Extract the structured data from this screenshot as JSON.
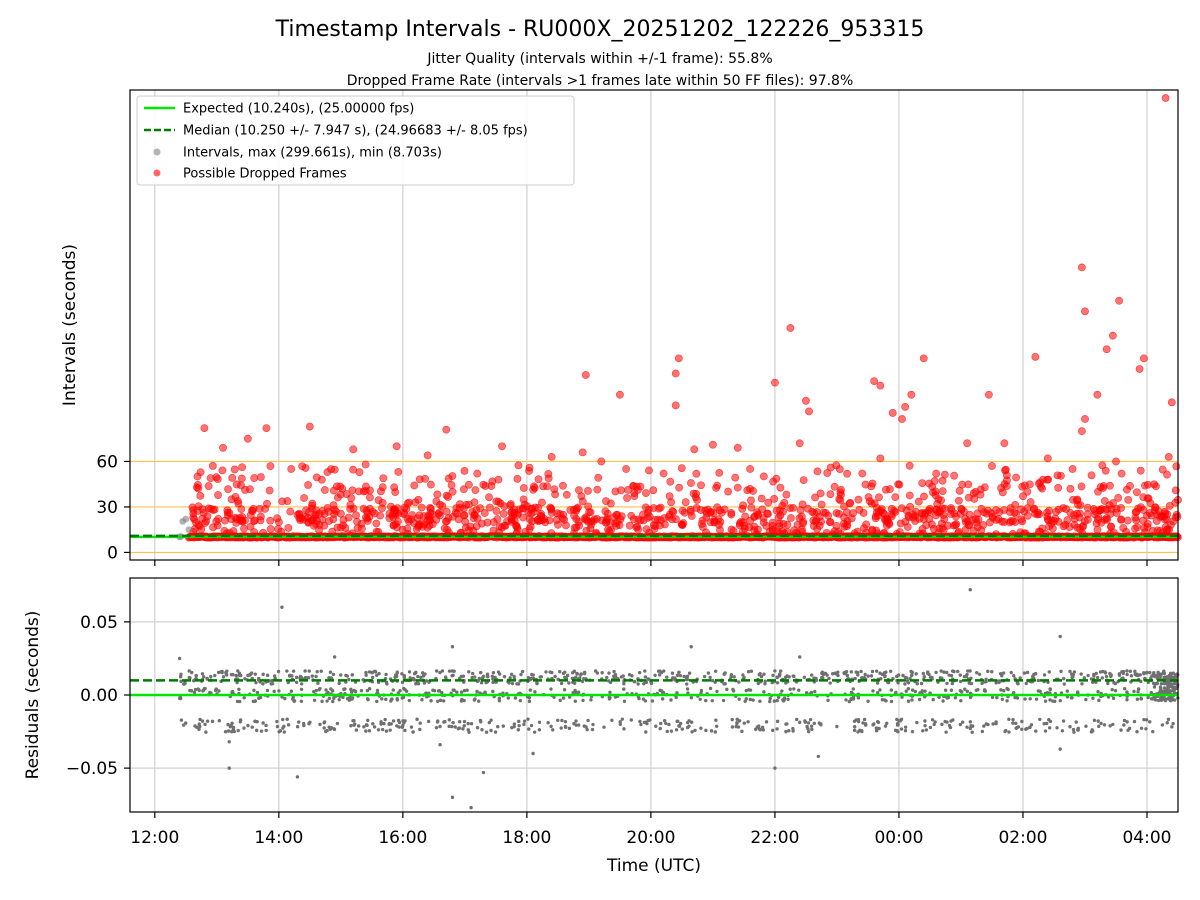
{
  "chart_data": [
    {
      "type": "scatter",
      "title": "Timestamp Intervals - RU000X_20251202_122226_953315",
      "subtitle_1": "Jitter Quality (intervals within +/-1 frame): 55.8%",
      "subtitle_2": "Dropped Frame Rate (intervals >1 frames late within 50 FF files): 97.8%",
      "ylabel": "Intervals (seconds)",
      "xlabel": "",
      "xlim_hours": [
        11.6,
        28.5
      ],
      "ylim": [
        -5,
        305
      ],
      "yticks": [
        0,
        30,
        60
      ],
      "ytick_labels": [
        "0",
        "30",
        "60"
      ],
      "xticks_hours": [
        12,
        14,
        16,
        18,
        20,
        22,
        24,
        26,
        28
      ],
      "threshold_lines": [
        0,
        30,
        60
      ],
      "grid": "x",
      "legend_position": "top-left",
      "legend": [
        {
          "label": "Expected (10.240s), (25.00000 fps)",
          "style": "solid-line",
          "color": "#00e600"
        },
        {
          "label": "Median (10.250 +/- 7.947 s), (24.96683 +/- 8.05 fps)",
          "style": "dashed-line",
          "color": "#007a00"
        },
        {
          "label": "Intervals, max (299.661s), min (8.703s)",
          "style": "marker",
          "color": "#808080"
        },
        {
          "label": "Possible Dropped Frames",
          "style": "marker",
          "color": "#ff0000"
        }
      ],
      "expected_value": 10.24,
      "median_value": 10.25,
      "series": [
        {
          "name": "Possible Dropped Frames (sampled outliers)",
          "color": "#ff0000",
          "points": [
            [
              28.3,
              299.7
            ],
            [
              26.95,
              188
            ],
            [
              27.0,
              159
            ],
            [
              27.55,
              166
            ],
            [
              27.45,
              143
            ],
            [
              24.4,
              128
            ],
            [
              22.25,
              148
            ],
            [
              23.6,
              113
            ],
            [
              20.4,
              118
            ],
            [
              20.45,
              128
            ],
            [
              20.4,
              97
            ],
            [
              19.5,
              104
            ],
            [
              22.0,
              112
            ],
            [
              22.5,
              100
            ],
            [
              22.55,
              93
            ],
            [
              23.9,
              92
            ],
            [
              24.1,
              96
            ],
            [
              24.2,
              104
            ],
            [
              24.05,
              88
            ],
            [
              25.45,
              104
            ],
            [
              27.35,
              134
            ],
            [
              27.2,
              104
            ],
            [
              28.4,
              99
            ],
            [
              27.0,
              88
            ],
            [
              26.2,
              129
            ],
            [
              26.95,
              80
            ],
            [
              27.95,
              128
            ],
            [
              27.88,
              121
            ],
            [
              23.7,
              110
            ],
            [
              13.1,
              69
            ],
            [
              13.5,
              75
            ],
            [
              13.8,
              82
            ],
            [
              12.8,
              82
            ],
            [
              14.5,
              83
            ],
            [
              16.7,
              81
            ],
            [
              18.95,
              117
            ],
            [
              15.2,
              68
            ],
            [
              15.9,
              70
            ],
            [
              16.4,
              64
            ],
            [
              17.6,
              70
            ],
            [
              18.4,
              63
            ],
            [
              18.9,
              66
            ],
            [
              19.2,
              60
            ],
            [
              20.7,
              68
            ],
            [
              21.0,
              71
            ],
            [
              21.4,
              69
            ],
            [
              22.4,
              72
            ],
            [
              23.7,
              62
            ],
            [
              25.1,
              72
            ],
            [
              25.7,
              72
            ],
            [
              26.4,
              62
            ],
            [
              27.5,
              60
            ],
            [
              28.35,
              63
            ],
            [
              12.9,
              49
            ],
            [
              14.2,
              55
            ],
            [
              15.4,
              58
            ],
            [
              17.2,
              52
            ],
            [
              19.6,
              55
            ],
            [
              21.6,
              55
            ],
            [
              22.9,
              56
            ],
            [
              24.6,
              52
            ],
            [
              25.5,
              57
            ],
            [
              26.8,
              55
            ]
          ],
          "band_summary": {
            "dense_band_value": 10.24,
            "common_range": [
              15,
              50
            ]
          }
        },
        {
          "name": "Intervals (gray, near expected)",
          "color": "#808080",
          "points": [
            [
              12.4,
              10.2
            ],
            [
              12.45,
              20.5
            ],
            [
              12.5,
              22
            ],
            [
              12.55,
              15
            ],
            [
              12.42,
              10.5
            ]
          ]
        }
      ]
    },
    {
      "type": "scatter",
      "title": "",
      "ylabel": "Residuals (seconds)",
      "xlabel": "Time (UTC)",
      "xlim_hours": [
        11.6,
        28.5
      ],
      "ylim": [
        -0.08,
        0.08
      ],
      "yticks": [
        -0.05,
        0.0,
        0.05
      ],
      "ytick_labels": [
        "−0.05",
        "0.00",
        "0.05"
      ],
      "xticks_hours": [
        12,
        14,
        16,
        18,
        20,
        22,
        24,
        26,
        28
      ],
      "xtick_labels": [
        "12:00",
        "14:00",
        "16:00",
        "18:00",
        "20:00",
        "22:00",
        "00:00",
        "02:00",
        "04:00"
      ],
      "grid": "both",
      "expected_value": 0.0,
      "median_value": 0.01,
      "series": [
        {
          "name": "Residuals",
          "color": "#808080",
          "band_summary": {
            "bands": [
              0.012,
              0.0,
              -0.021
            ],
            "start_hour": 12.4,
            "end_hour": 28.5
          },
          "outliers": [
            [
              12.4,
              0.025
            ],
            [
              13.2,
              -0.05
            ],
            [
              14.05,
              0.06
            ],
            [
              14.3,
              -0.056
            ],
            [
              14.9,
              0.026
            ],
            [
              16.8,
              0.033
            ],
            [
              16.8,
              -0.07
            ],
            [
              17.1,
              -0.077
            ],
            [
              17.3,
              -0.053
            ],
            [
              18.1,
              -0.04
            ],
            [
              20.65,
              0.033
            ],
            [
              22.0,
              -0.05
            ],
            [
              22.4,
              0.026
            ],
            [
              22.7,
              -0.042
            ],
            [
              25.15,
              0.072
            ],
            [
              26.6,
              0.04
            ],
            [
              26.6,
              -0.037
            ],
            [
              13.2,
              -0.032
            ],
            [
              16.6,
              -0.034
            ]
          ]
        }
      ]
    }
  ]
}
